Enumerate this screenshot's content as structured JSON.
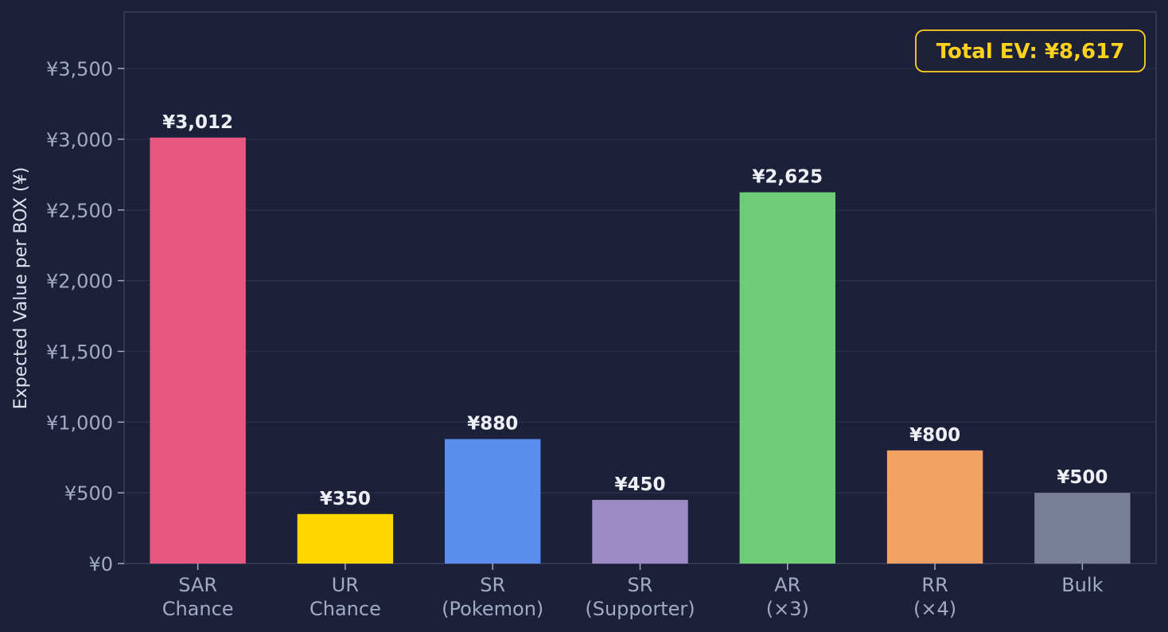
{
  "chart_data": {
    "type": "bar",
    "categories": [
      [
        "SAR",
        "Chance"
      ],
      [
        "UR",
        "Chance"
      ],
      [
        "SR",
        "(Pokemon)"
      ],
      [
        "SR",
        "(Supporter)"
      ],
      [
        "AR",
        "(×3)"
      ],
      [
        "RR",
        "(×4)"
      ],
      [
        "Bulk"
      ]
    ],
    "values": [
      3012,
      350,
      880,
      450,
      2625,
      800,
      500
    ],
    "value_labels": [
      "¥3,012",
      "¥350",
      "¥880",
      "¥450",
      "¥2,625",
      "¥800",
      "¥500"
    ],
    "colors": [
      "#e85781",
      "#ffd700",
      "#5b8def",
      "#9c8cc6",
      "#6fcd78",
      "#f2a363",
      "#7a7f99"
    ],
    "title": "",
    "xlabel": "",
    "ylabel": "Expected Value per BOX (¥)",
    "ylim": [
      0,
      3900
    ],
    "yticks": [
      0,
      500,
      1000,
      1500,
      2000,
      2500,
      3000,
      3500
    ],
    "ytick_labels": [
      "¥0",
      "¥500",
      "¥1,000",
      "¥1,500",
      "¥2,000",
      "¥2,500",
      "¥3,000",
      "¥3,500"
    ],
    "grid": true,
    "annotation": {
      "text": "Total EV: ¥8,617",
      "placement": "top-right",
      "color": "#ffd21f"
    },
    "theme": {
      "background": "#1c2039",
      "grid_color": "#2b3050",
      "spine_color": "#3a3f5c"
    }
  }
}
